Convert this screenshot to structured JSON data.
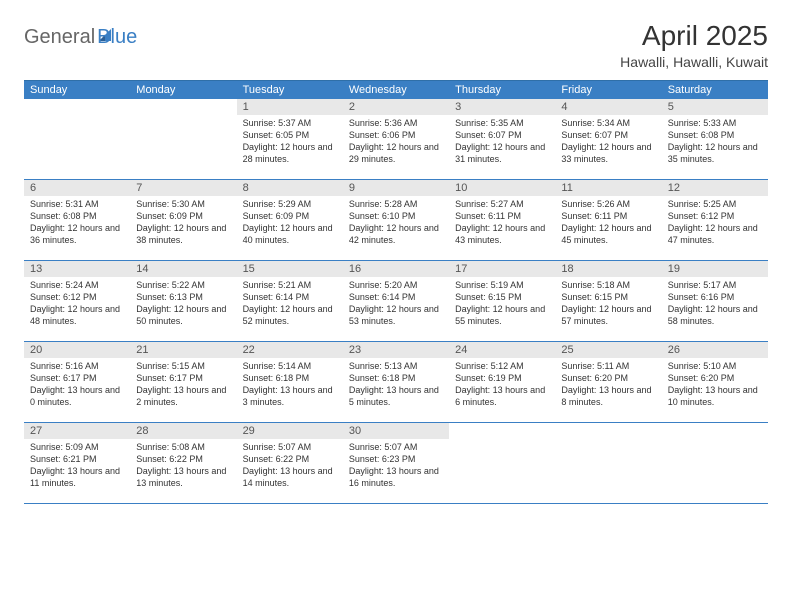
{
  "logo": {
    "word1": "General",
    "word2": "Blue"
  },
  "title": "April 2025",
  "location": "Hawalli, Hawalli, Kuwait",
  "colors": {
    "header_bg": "#3a7fc4",
    "header_text": "#ffffff",
    "border": "#3a7fc4",
    "daynum_bg": "#e8e8e8",
    "text": "#333333",
    "grid_line": "#2f6fa8"
  },
  "daynames": [
    "Sunday",
    "Monday",
    "Tuesday",
    "Wednesday",
    "Thursday",
    "Friday",
    "Saturday"
  ],
  "weeks": [
    [
      null,
      null,
      {
        "day": "1",
        "sunrise": "5:37 AM",
        "sunset": "6:05 PM",
        "daylight": "12 hours and 28 minutes."
      },
      {
        "day": "2",
        "sunrise": "5:36 AM",
        "sunset": "6:06 PM",
        "daylight": "12 hours and 29 minutes."
      },
      {
        "day": "3",
        "sunrise": "5:35 AM",
        "sunset": "6:07 PM",
        "daylight": "12 hours and 31 minutes."
      },
      {
        "day": "4",
        "sunrise": "5:34 AM",
        "sunset": "6:07 PM",
        "daylight": "12 hours and 33 minutes."
      },
      {
        "day": "5",
        "sunrise": "5:33 AM",
        "sunset": "6:08 PM",
        "daylight": "12 hours and 35 minutes."
      }
    ],
    [
      {
        "day": "6",
        "sunrise": "5:31 AM",
        "sunset": "6:08 PM",
        "daylight": "12 hours and 36 minutes."
      },
      {
        "day": "7",
        "sunrise": "5:30 AM",
        "sunset": "6:09 PM",
        "daylight": "12 hours and 38 minutes."
      },
      {
        "day": "8",
        "sunrise": "5:29 AM",
        "sunset": "6:09 PM",
        "daylight": "12 hours and 40 minutes."
      },
      {
        "day": "9",
        "sunrise": "5:28 AM",
        "sunset": "6:10 PM",
        "daylight": "12 hours and 42 minutes."
      },
      {
        "day": "10",
        "sunrise": "5:27 AM",
        "sunset": "6:11 PM",
        "daylight": "12 hours and 43 minutes."
      },
      {
        "day": "11",
        "sunrise": "5:26 AM",
        "sunset": "6:11 PM",
        "daylight": "12 hours and 45 minutes."
      },
      {
        "day": "12",
        "sunrise": "5:25 AM",
        "sunset": "6:12 PM",
        "daylight": "12 hours and 47 minutes."
      }
    ],
    [
      {
        "day": "13",
        "sunrise": "5:24 AM",
        "sunset": "6:12 PM",
        "daylight": "12 hours and 48 minutes."
      },
      {
        "day": "14",
        "sunrise": "5:22 AM",
        "sunset": "6:13 PM",
        "daylight": "12 hours and 50 minutes."
      },
      {
        "day": "15",
        "sunrise": "5:21 AM",
        "sunset": "6:14 PM",
        "daylight": "12 hours and 52 minutes."
      },
      {
        "day": "16",
        "sunrise": "5:20 AM",
        "sunset": "6:14 PM",
        "daylight": "12 hours and 53 minutes."
      },
      {
        "day": "17",
        "sunrise": "5:19 AM",
        "sunset": "6:15 PM",
        "daylight": "12 hours and 55 minutes."
      },
      {
        "day": "18",
        "sunrise": "5:18 AM",
        "sunset": "6:15 PM",
        "daylight": "12 hours and 57 minutes."
      },
      {
        "day": "19",
        "sunrise": "5:17 AM",
        "sunset": "6:16 PM",
        "daylight": "12 hours and 58 minutes."
      }
    ],
    [
      {
        "day": "20",
        "sunrise": "5:16 AM",
        "sunset": "6:17 PM",
        "daylight": "13 hours and 0 minutes."
      },
      {
        "day": "21",
        "sunrise": "5:15 AM",
        "sunset": "6:17 PM",
        "daylight": "13 hours and 2 minutes."
      },
      {
        "day": "22",
        "sunrise": "5:14 AM",
        "sunset": "6:18 PM",
        "daylight": "13 hours and 3 minutes."
      },
      {
        "day": "23",
        "sunrise": "5:13 AM",
        "sunset": "6:18 PM",
        "daylight": "13 hours and 5 minutes."
      },
      {
        "day": "24",
        "sunrise": "5:12 AM",
        "sunset": "6:19 PM",
        "daylight": "13 hours and 6 minutes."
      },
      {
        "day": "25",
        "sunrise": "5:11 AM",
        "sunset": "6:20 PM",
        "daylight": "13 hours and 8 minutes."
      },
      {
        "day": "26",
        "sunrise": "5:10 AM",
        "sunset": "6:20 PM",
        "daylight": "13 hours and 10 minutes."
      }
    ],
    [
      {
        "day": "27",
        "sunrise": "5:09 AM",
        "sunset": "6:21 PM",
        "daylight": "13 hours and 11 minutes."
      },
      {
        "day": "28",
        "sunrise": "5:08 AM",
        "sunset": "6:22 PM",
        "daylight": "13 hours and 13 minutes."
      },
      {
        "day": "29",
        "sunrise": "5:07 AM",
        "sunset": "6:22 PM",
        "daylight": "13 hours and 14 minutes."
      },
      {
        "day": "30",
        "sunrise": "5:07 AM",
        "sunset": "6:23 PM",
        "daylight": "13 hours and 16 minutes."
      },
      null,
      null,
      null
    ]
  ]
}
